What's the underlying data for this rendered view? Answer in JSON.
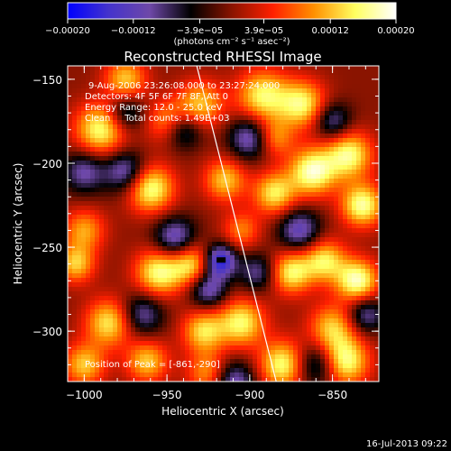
{
  "chart_data": {
    "type": "heatmap",
    "title": "Reconstructed RHESSI Image",
    "xlabel": "Heliocentric X (arcsec)",
    "ylabel": "Heliocentric Y (arcsec)",
    "xlim": [
      -1010,
      -822
    ],
    "ylim": [
      -330,
      -142
    ],
    "x_ticks": [
      -1000,
      -950,
      -900,
      -850
    ],
    "x_tick_labels": [
      "−1000",
      "−950",
      "−900",
      "−850"
    ],
    "y_ticks": [
      -150,
      -200,
      -250,
      -300
    ],
    "y_tick_labels": [
      "−150",
      "−200",
      "−250",
      "−300"
    ],
    "colorbar": {
      "range": [
        -0.0002,
        0.0002
      ],
      "ticks": [
        -0.0002,
        -0.00012,
        -3.9e-05,
        3.9e-05,
        0.00012,
        0.0002
      ],
      "tick_labels": [
        "−0.00020",
        "−0.00012",
        "−3.9e−05",
        "3.9e−05",
        "0.00012",
        "0.00020"
      ],
      "unit_label": "(photons cm⁻² s⁻¹ asec⁻²)",
      "colors": [
        "#0000ff",
        "#4433cc",
        "#6e48a8",
        "#000000",
        "#8a1400",
        "#ff2000",
        "#ff9000",
        "#ffff60",
        "#ffffff"
      ]
    },
    "info_lines": [
      "9-Aug-2006 23:26:08.000 to 23:27:24.000",
      "Detectors: 4F 5F 6F 7F 8F, Att 0",
      "Energy Range: 12.0 - 25.0 keV",
      "Clean     Total counts: 1.49E+03"
    ],
    "peak_label": "Position of Peak = [-861,-290]",
    "peak_position": [
      -861,
      -290
    ],
    "limb_line": [
      [
        -932,
        -142
      ],
      [
        -884,
        -330
      ]
    ],
    "sources": [
      [
        -990,
        -180,
        0.9,
        11
      ],
      [
        -975,
        -150,
        0.7,
        9
      ],
      [
        -1000,
        -240,
        0.6,
        9
      ],
      [
        -985,
        -295,
        0.8,
        10
      ],
      [
        -960,
        -215,
        0.95,
        10
      ],
      [
        -955,
        -265,
        0.9,
        10
      ],
      [
        -962,
        -318,
        0.7,
        9
      ],
      [
        -930,
        -165,
        0.7,
        10
      ],
      [
        -935,
        -260,
        0.8,
        9
      ],
      [
        -928,
        -300,
        0.75,
        9
      ],
      [
        -915,
        -210,
        0.7,
        9
      ],
      [
        -905,
        -295,
        0.85,
        10
      ],
      [
        -892,
        -160,
        0.85,
        11
      ],
      [
        -885,
        -218,
        0.8,
        9
      ],
      [
        -875,
        -265,
        0.85,
        9
      ],
      [
        -880,
        -320,
        0.9,
        10
      ],
      [
        -868,
        -165,
        0.85,
        10
      ],
      [
        -862,
        -205,
        1.0,
        10
      ],
      [
        -855,
        -258,
        0.8,
        9
      ],
      [
        -850,
        -298,
        0.7,
        10
      ],
      [
        -840,
        -195,
        0.9,
        10
      ],
      [
        -832,
        -225,
        0.95,
        9
      ],
      [
        -835,
        -270,
        1.0,
        9
      ],
      [
        -842,
        -318,
        0.9,
        10
      ],
      [
        -1005,
        -260,
        0.7,
        8
      ],
      [
        -905,
        -240,
        0.5,
        8
      ],
      [
        -950,
        -175,
        0.55,
        9
      ],
      [
        -1000,
        -320,
        0.7,
        9
      ],
      [
        -925,
        -325,
        0.6,
        9
      ],
      [
        -885,
        -185,
        0.55,
        8
      ],
      [
        -945,
        -245,
        -0.75,
        9
      ],
      [
        -918,
        -258,
        -1.0,
        7
      ],
      [
        -975,
        -205,
        -0.7,
        9
      ],
      [
        -940,
        -180,
        -0.6,
        8
      ],
      [
        -900,
        -185,
        -0.7,
        9
      ],
      [
        -870,
        -240,
        -0.7,
        9
      ],
      [
        -965,
        -290,
        -0.6,
        9
      ],
      [
        -910,
        -330,
        -0.7,
        9
      ],
      [
        -850,
        -175,
        -0.6,
        8
      ],
      [
        -975,
        -170,
        -0.55,
        8
      ],
      [
        -1000,
        -205,
        -0.6,
        9
      ],
      [
        -925,
        -275,
        -0.7,
        8
      ],
      [
        -860,
        -320,
        -0.6,
        9
      ],
      [
        -830,
        -290,
        -0.6,
        8
      ],
      [
        -895,
        -265,
        -0.55,
        8
      ]
    ],
    "footer_date": "16-Jul-2013 09:22"
  }
}
